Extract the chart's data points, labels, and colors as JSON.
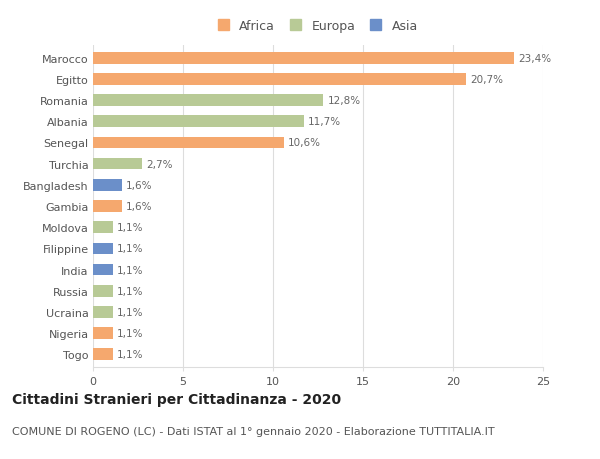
{
  "countries": [
    "Marocco",
    "Egitto",
    "Romania",
    "Albania",
    "Senegal",
    "Turchia",
    "Bangladesh",
    "Gambia",
    "Moldova",
    "Filippine",
    "India",
    "Russia",
    "Ucraina",
    "Nigeria",
    "Togo"
  ],
  "values": [
    23.4,
    20.7,
    12.8,
    11.7,
    10.6,
    2.7,
    1.6,
    1.6,
    1.1,
    1.1,
    1.1,
    1.1,
    1.1,
    1.1,
    1.1
  ],
  "labels": [
    "23,4%",
    "20,7%",
    "12,8%",
    "11,7%",
    "10,6%",
    "2,7%",
    "1,6%",
    "1,6%",
    "1,1%",
    "1,1%",
    "1,1%",
    "1,1%",
    "1,1%",
    "1,1%",
    "1,1%"
  ],
  "continents": [
    "Africa",
    "Africa",
    "Europa",
    "Europa",
    "Africa",
    "Europa",
    "Asia",
    "Africa",
    "Europa",
    "Asia",
    "Asia",
    "Europa",
    "Europa",
    "Africa",
    "Africa"
  ],
  "colors": {
    "Africa": "#F5A86E",
    "Europa": "#B8CA96",
    "Asia": "#6B8FC9"
  },
  "legend_labels": [
    "Africa",
    "Europa",
    "Asia"
  ],
  "legend_colors": [
    "#F5A86E",
    "#B8CA96",
    "#6B8FC9"
  ],
  "title": "Cittadini Stranieri per Cittadinanza - 2020",
  "subtitle": "COMUNE DI ROGENO (LC) - Dati ISTAT al 1° gennaio 2020 - Elaborazione TUTTITALIA.IT",
  "xlim": [
    0,
    25
  ],
  "xticks": [
    0,
    5,
    10,
    15,
    20,
    25
  ],
  "background_color": "#ffffff",
  "grid_color": "#dddddd",
  "bar_height": 0.55,
  "title_fontsize": 10,
  "subtitle_fontsize": 8,
  "label_fontsize": 7.5,
  "tick_fontsize": 8,
  "legend_fontsize": 9
}
